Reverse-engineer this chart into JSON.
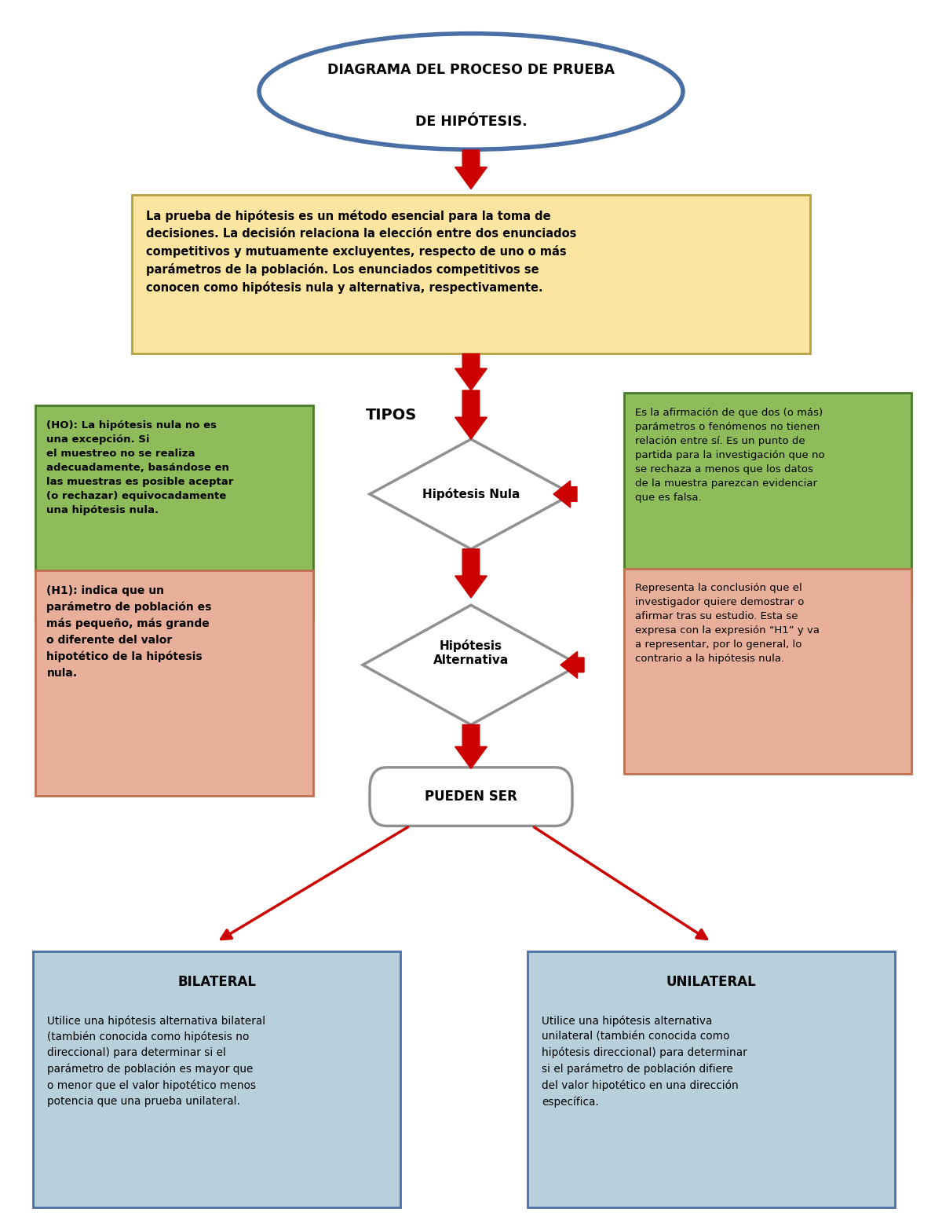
{
  "bg_color": "#ffffff",
  "ellipse_edge_color": "#4a6fa5",
  "ellipse_face_color": "#ffffff",
  "yellow_box_color": "#fce5a0",
  "yellow_box_edge": "#b8a040",
  "yellow_box_text": "La prueba de hipótesis es un método esencial para la toma de\ndecisiones. La decisión relaciona la elección entre dos enunciados\ncompetitivos y mutuamente excluyentes, respecto de uno o más\nparámetros de la población. Los enunciados competitivos se\nconocen como hipótesis nula y alternativa, respectivamente.",
  "tipos_text": "TIPOS",
  "diamond1_text": "Hipótesis Nula",
  "diamond2_text": "Hipótesis\nAlternativa",
  "rounded_box_text": "PUEDEN SER",
  "green_box1_text": "(HO): La hipótesis nula no es\nuna excepción. Si\nel muestreo no se realiza\nadecuadamente, basándose en\nlas muestras es posible aceptar\n(o rechazar) equivocadamente\nuna hipótesis nula.",
  "green_box2_text": "Es la afirmación de que dos (o más)\nparámetros o fenómenos no tienen\nrelación entre sí. Es un punto de\npartida para la investigación que no\nse rechaza a menos que los datos\nde la muestra parezcan evidenciar\nque es falsa.",
  "salmon_box1_text": "(H1): indica que un\nparámetro de población es\nmás pequeño, más grande\no diferente del valor\nhipotético de la hipótesis\nnula.",
  "salmon_box2_text": "Representa la conclusión que el\ninvestigador quiere demostrar o\nafirmar tras su estudio. Esta se\nexpresa con la expresión “H1” y va\na representar, por lo general, lo\ncontrario a la hipótesis nula.",
  "bilateral_title": "BILATERAL",
  "bilateral_text": "Utilice una hipótesis alternativa bilateral\n(también conocida como hipótesis no\ndireccional) para determinar si el\nparámetro de población es mayor que\no menor que el valor hipotético menos\npotencia que una prueba unilateral.",
  "unilateral_title": "UNILATERAL",
  "unilateral_text": "Utilice una hipótesis alternativa\nunilateral (también conocida como\nhipótesis direccional) para determinar\nsi el parámetro de población difiere\ndel valor hipotético en una dirección\nespecífica.",
  "blue_box_color": "#b8d0dc",
  "blue_box_edge": "#4a6fa5",
  "green_box_color": "#8fbc5a",
  "green_box_edge": "#4a7a2a",
  "salmon_box_color": "#e8b09a",
  "salmon_box_edge": "#c07050",
  "diamond_color": "#ffffff",
  "diamond_edge": "#909090",
  "arrow_color": "#cc0000",
  "rounded_box_color": "#ffffff",
  "rounded_box_edge": "#909090",
  "title_line1": "DIAGRAMA DEL PROCESO DE PRUEBA",
  "title_line2": "DE HIPÓTESIS."
}
